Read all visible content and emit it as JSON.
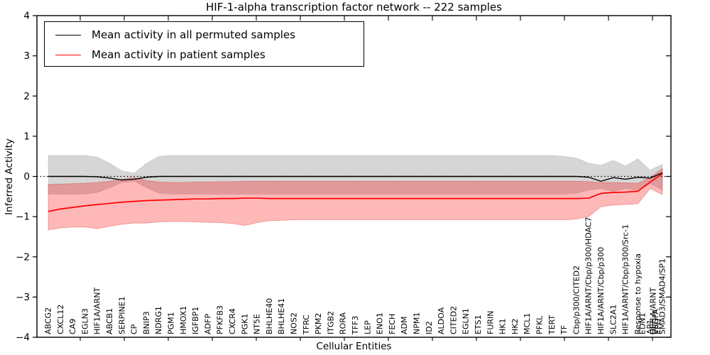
{
  "chart_data": {
    "type": "line",
    "title": "HIF-1-alpha transcription factor network -- 222 samples",
    "xlabel": "Cellular Entities",
    "ylabel": "Inferred Activity",
    "ylim": [
      -4,
      4
    ],
    "yticks": [
      4,
      3,
      2,
      1,
      0,
      -1,
      -2,
      -3,
      -4
    ],
    "zero_line": {
      "value": 0,
      "style": "dotted",
      "color": "#000000"
    },
    "grid": false,
    "legend_position": "upper-left",
    "categories": [
      "ABCG2",
      "CXCL12",
      "CA9",
      "EGLN3",
      "HIF1A/ARNT",
      "ABCB1",
      "SERPINE1",
      "CP",
      "BNIP3",
      "NDRG1",
      "PGM1",
      "HMOX1",
      "IGFBP1",
      "ADFP",
      "PFKFB3",
      "CXCR4",
      "PGK1",
      "NT5E",
      "BHLHE40",
      "BHLHE41",
      "NOS2",
      "TFRC",
      "PKM2",
      "ITGB2",
      "RORA",
      "TFF3",
      "LEP",
      "ENO1",
      "FECH",
      "ADM",
      "NPM1",
      "ID2",
      "ALDOA",
      "CITED2",
      "EGLN1",
      "ETS1",
      "FURIN",
      "HK1",
      "HK2",
      "MCL1",
      "PFKL",
      "TERT",
      "TF",
      "Cbp/p300/CITED2",
      "HIF1A/ARNT/Cbp/p300/HDAC7",
      "HIF1A/ARNT/Cbp/p300",
      "SLC2A1",
      "HIF1A/ARNT/Cbp/p300/Src-1",
      "Response to hypoxia",
      "AP1",
      "SMAD3/SMAD4/SP1"
    ],
    "overlapping_label_mid": "EDN1",
    "overlapping_end_cluster": [
      "HIF1A/ARNT",
      "VEGFA",
      "EPO"
    ],
    "series": [
      {
        "name": "Mean activity in all permuted samples",
        "color": "#000000",
        "values": [
          0,
          0,
          0,
          0,
          -0.01,
          -0.04,
          -0.09,
          -0.07,
          -0.02,
          0,
          0,
          0,
          0,
          0,
          0,
          0,
          0,
          0,
          0,
          0,
          0,
          0,
          0,
          0,
          0,
          0,
          0,
          0,
          0,
          0,
          0,
          0,
          0,
          0,
          0,
          0,
          0,
          0,
          0,
          0,
          0,
          0,
          0,
          0,
          -0.02,
          -0.12,
          -0.03,
          -0.07,
          -0.02,
          -0.04,
          0.09
        ]
      },
      {
        "name": "Mean activity in patient samples",
        "color": "#ff0000",
        "values": [
          -0.87,
          -0.81,
          -0.77,
          -0.73,
          -0.7,
          -0.67,
          -0.64,
          -0.62,
          -0.6,
          -0.59,
          -0.58,
          -0.57,
          -0.56,
          -0.56,
          -0.55,
          -0.55,
          -0.54,
          -0.54,
          -0.55,
          -0.55,
          -0.55,
          -0.55,
          -0.55,
          -0.55,
          -0.55,
          -0.55,
          -0.55,
          -0.55,
          -0.55,
          -0.55,
          -0.55,
          -0.55,
          -0.55,
          -0.55,
          -0.55,
          -0.55,
          -0.55,
          -0.55,
          -0.55,
          -0.55,
          -0.55,
          -0.55,
          -0.55,
          -0.55,
          -0.54,
          -0.42,
          -0.4,
          -0.39,
          -0.37,
          -0.14,
          0.07
        ]
      }
    ],
    "bands": [
      {
        "name": "permuted samples range",
        "fill": "rgba(0,0,0,0.16)",
        "upper": [
          0.52,
          0.52,
          0.52,
          0.52,
          0.48,
          0.33,
          0.14,
          0.08,
          0.33,
          0.5,
          0.52,
          0.52,
          0.52,
          0.52,
          0.52,
          0.52,
          0.52,
          0.52,
          0.52,
          0.52,
          0.52,
          0.52,
          0.52,
          0.52,
          0.52,
          0.52,
          0.52,
          0.52,
          0.52,
          0.52,
          0.52,
          0.52,
          0.52,
          0.52,
          0.52,
          0.52,
          0.52,
          0.52,
          0.52,
          0.52,
          0.52,
          0.52,
          0.5,
          0.46,
          0.33,
          0.28,
          0.4,
          0.26,
          0.44,
          0.16,
          0.3
        ],
        "lower": [
          -0.44,
          -0.44,
          -0.44,
          -0.44,
          -0.4,
          -0.28,
          -0.15,
          -0.12,
          -0.28,
          -0.42,
          -0.44,
          -0.44,
          -0.44,
          -0.44,
          -0.44,
          -0.44,
          -0.44,
          -0.44,
          -0.44,
          -0.44,
          -0.44,
          -0.44,
          -0.44,
          -0.44,
          -0.44,
          -0.44,
          -0.44,
          -0.44,
          -0.44,
          -0.44,
          -0.44,
          -0.44,
          -0.44,
          -0.44,
          -0.44,
          -0.44,
          -0.44,
          -0.44,
          -0.44,
          -0.44,
          -0.44,
          -0.44,
          -0.44,
          -0.42,
          -0.34,
          -0.3,
          -0.38,
          -0.3,
          -0.36,
          -0.18,
          -0.34
        ]
      },
      {
        "name": "patient samples range",
        "fill": "rgba(255,0,0,0.28)",
        "upper": [
          -0.2,
          -0.19,
          -0.18,
          -0.17,
          -0.15,
          -0.12,
          -0.07,
          -0.03,
          -0.1,
          -0.14,
          -0.15,
          -0.15,
          -0.14,
          -0.14,
          -0.13,
          -0.13,
          -0.12,
          -0.12,
          -0.12,
          -0.12,
          -0.12,
          -0.12,
          -0.12,
          -0.12,
          -0.12,
          -0.12,
          -0.12,
          -0.12,
          -0.12,
          -0.12,
          -0.12,
          -0.12,
          -0.12,
          -0.12,
          -0.12,
          -0.12,
          -0.12,
          -0.12,
          -0.12,
          -0.12,
          -0.12,
          -0.12,
          -0.12,
          -0.12,
          -0.13,
          -0.15,
          -0.15,
          -0.16,
          -0.17,
          -0.03,
          0.2
        ],
        "lower": [
          -1.33,
          -1.28,
          -1.26,
          -1.26,
          -1.3,
          -1.24,
          -1.19,
          -1.16,
          -1.16,
          -1.13,
          -1.12,
          -1.12,
          -1.13,
          -1.14,
          -1.15,
          -1.17,
          -1.22,
          -1.15,
          -1.1,
          -1.09,
          -1.08,
          -1.08,
          -1.08,
          -1.08,
          -1.08,
          -1.08,
          -1.08,
          -1.08,
          -1.08,
          -1.08,
          -1.08,
          -1.08,
          -1.08,
          -1.08,
          -1.08,
          -1.08,
          -1.08,
          -1.08,
          -1.08,
          -1.08,
          -1.08,
          -1.08,
          -1.08,
          -1.06,
          -1.0,
          -0.75,
          -0.71,
          -0.7,
          -0.68,
          -0.3,
          -0.45
        ]
      }
    ],
    "legend": {
      "entries": [
        {
          "label": "Mean activity in all permuted samples",
          "color": "#000000"
        },
        {
          "label": "Mean activity in patient samples",
          "color": "#ff0000"
        }
      ]
    }
  }
}
